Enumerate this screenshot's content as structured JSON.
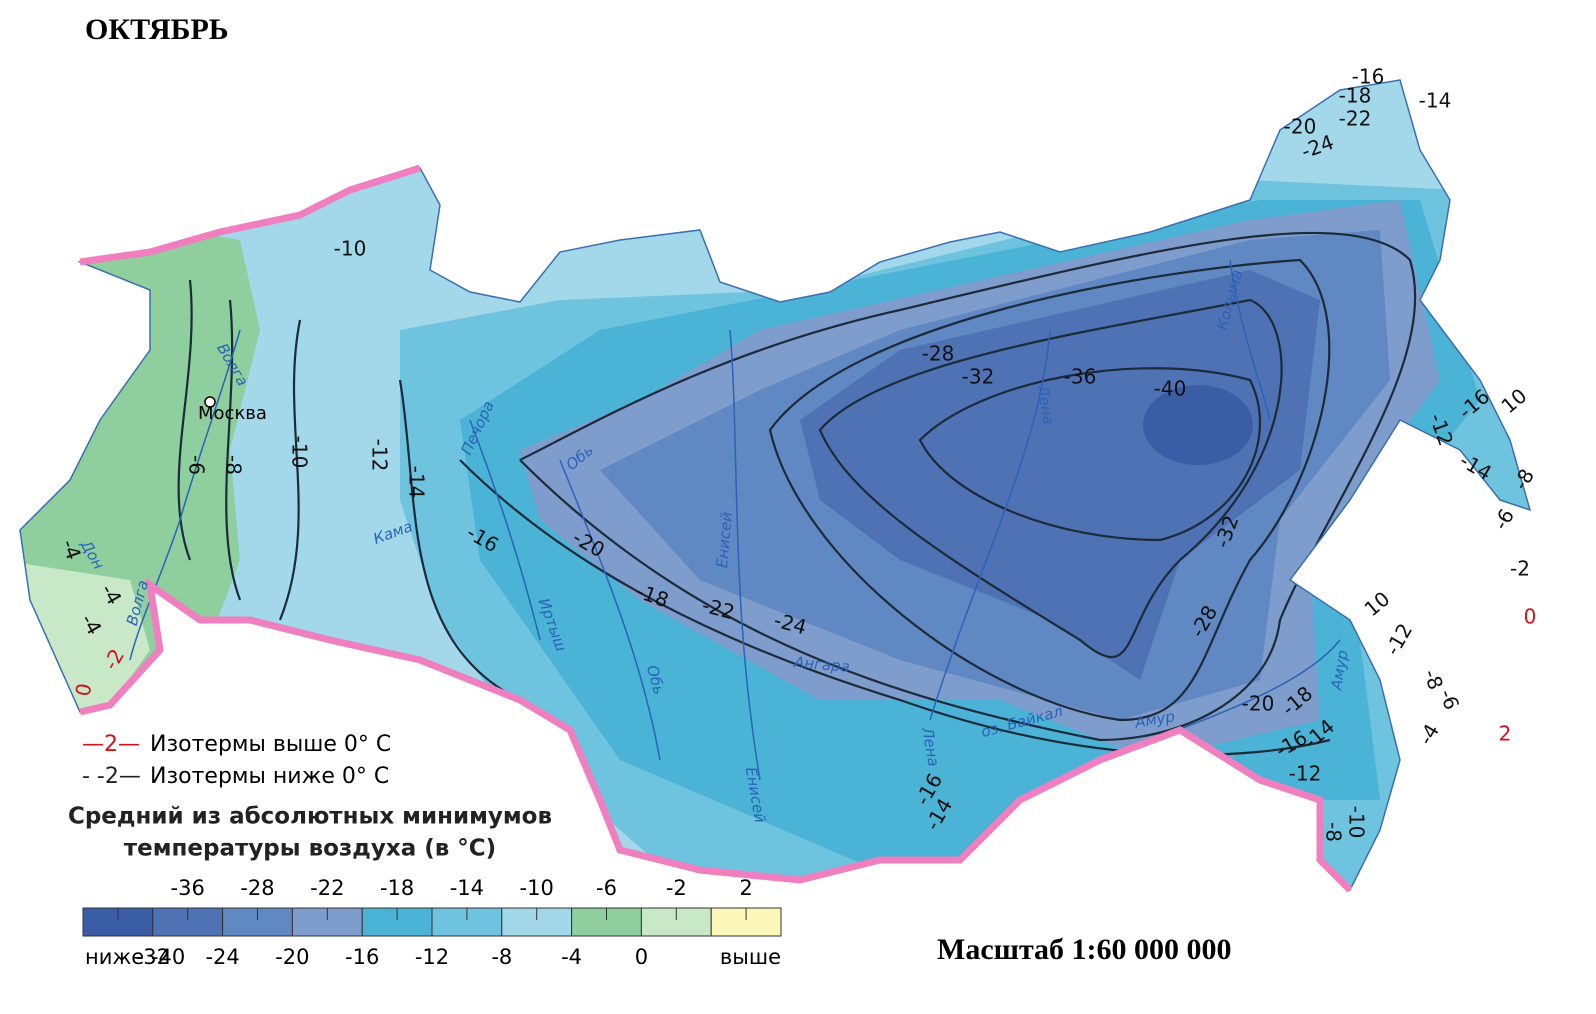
{
  "title": "ОКТЯБРЬ",
  "legend": {
    "lines": [
      {
        "symbol": "—2—",
        "text": "Изотермы выше 0° C",
        "color": "#d0121b"
      },
      {
        "symbol": "- -2—",
        "text": "Изотермы ниже 0° C",
        "color": "#222222"
      }
    ],
    "scale_title": [
      "Средний из абсолютных минимумов",
      "температуры воздуха (в °C)"
    ],
    "upper_labels": [
      "-36",
      "-28",
      "-22",
      "-18",
      "-14",
      "-10",
      "-6",
      "-2",
      "2"
    ],
    "lower_labels": [
      "ниже -40",
      "-32",
      "-24",
      "-20",
      "-16",
      "-12",
      "-8",
      "-4",
      "0",
      "выше"
    ],
    "colors": [
      "#3a5da6",
      "#4f72b5",
      "#6088c2",
      "#7f9dcc",
      "#4bb3d6",
      "#6ec3df",
      "#a3d8ea",
      "#8fcf9e",
      "#c9e8c8",
      "#fbf7b9"
    ]
  },
  "places": [
    "Москва"
  ],
  "rivers": [
    "Волга",
    "Волга",
    "Дон",
    "Кама",
    "Печора",
    "Обь",
    "Обь",
    "Иртыш",
    "Енисей",
    "Енисей",
    "Ангара",
    "Лена",
    "Лена",
    "Колыма",
    "Амур",
    "Амур"
  ],
  "lake": "оз. Байкал",
  "isotherm_labels_below": [
    "-10",
    "-6",
    "-8",
    "-10",
    "-12",
    "-14",
    "-16",
    "-20",
    "-18",
    "-22",
    "-24",
    "-28",
    "-32",
    "-36",
    "-40",
    "-32",
    "-28",
    "-20",
    "-18",
    "-16",
    "-14",
    "-12",
    "-10",
    "-8",
    "-16",
    "-18",
    "-20",
    "-22",
    "-24",
    "-14",
    "-16",
    "10",
    "-12",
    "-14",
    "-8",
    "-6",
    "-2",
    "-4",
    "-4",
    "-4",
    "-16",
    "-14",
    "10",
    "-12",
    "-8",
    "-6",
    "-4"
  ],
  "isotherm_labels_above": [
    "0",
    "2",
    "0",
    "-2"
  ],
  "isotherm_above_color": "#d0121b",
  "scale": "Масштаб 1:60 000 000"
}
